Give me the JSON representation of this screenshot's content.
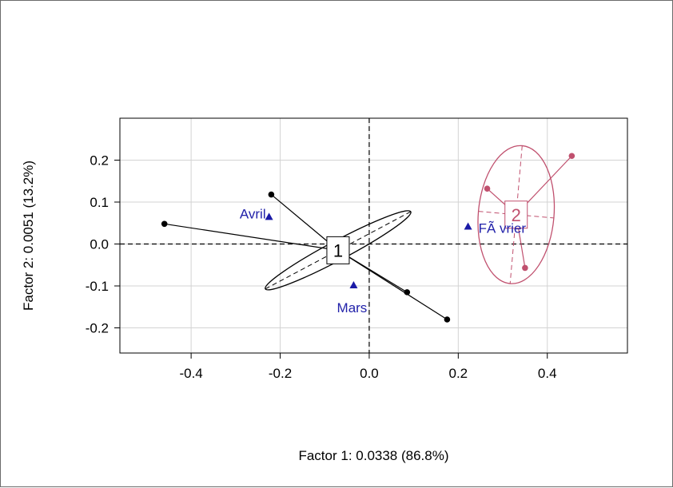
{
  "chart_data": {
    "type": "scatter",
    "xlabel": "Factor 1: 0.0338 (86.8%)",
    "ylabel": "Factor 2: 0.0051 (13.2%)",
    "xlim": [
      -0.56,
      0.58
    ],
    "ylim": [
      -0.26,
      0.3
    ],
    "x_ticks": [
      -0.4,
      -0.2,
      0.0,
      0.2,
      0.4
    ],
    "x_tick_labels": [
      "-0.4",
      "-0.2",
      "0.0",
      "0.2",
      "0.4"
    ],
    "y_ticks": [
      -0.2,
      -0.1,
      0.0,
      0.1,
      0.2
    ],
    "y_tick_labels": [
      "-0.2",
      "-0.1",
      "0.0",
      "0.1",
      "0.2"
    ],
    "grid": true,
    "colors": {
      "group1": "#000000",
      "group2": "#c0506e",
      "labels": "#2222aa",
      "grid": "#d3d3d3"
    },
    "column_points": [
      {
        "label": "Avril",
        "x": -0.225,
        "y": 0.065,
        "anchor": "end"
      },
      {
        "label": "Mars",
        "x": -0.035,
        "y": -0.098,
        "anchor": "middle"
      },
      {
        "label": "FÃ vrier",
        "x": 0.222,
        "y": 0.042,
        "anchor": "start"
      }
    ],
    "groups": [
      {
        "label": "1",
        "color": "#000000",
        "center": {
          "x": -0.07,
          "y": -0.015
        },
        "points": [
          {
            "x": -0.46,
            "y": 0.048
          },
          {
            "x": -0.22,
            "y": 0.118
          },
          {
            "x": 0.085,
            "y": -0.115
          },
          {
            "x": 0.175,
            "y": -0.18
          }
        ],
        "ellipse": {
          "cx": -0.07,
          "cy": -0.015,
          "a": 0.185,
          "b": 0.023,
          "angle_deg": -28
        }
      },
      {
        "label": "2",
        "color": "#c0506e",
        "center": {
          "x": 0.33,
          "y": 0.07
        },
        "points": [
          {
            "x": 0.455,
            "y": 0.21
          },
          {
            "x": 0.265,
            "y": 0.132
          },
          {
            "x": 0.35,
            "y": -0.057
          }
        ],
        "ellipse": {
          "cx": 0.33,
          "cy": 0.07,
          "a": 0.085,
          "b": 0.165,
          "angle_deg": 5
        }
      }
    ]
  }
}
